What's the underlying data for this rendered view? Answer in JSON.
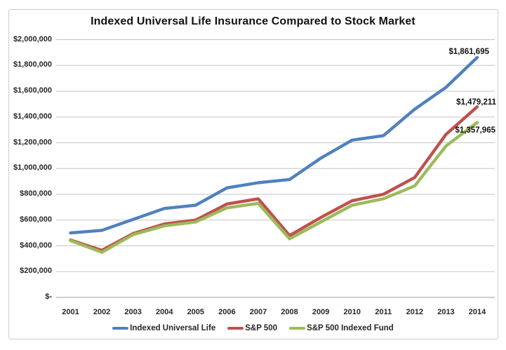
{
  "chart_data": {
    "type": "line",
    "title": "Indexed Universal Life Insurance Compared to Stock Market",
    "categories": [
      "2001",
      "2002",
      "2003",
      "2004",
      "2005",
      "2006",
      "2007",
      "2008",
      "2009",
      "2010",
      "2011",
      "2012",
      "2013",
      "2014"
    ],
    "series": [
      {
        "name": "Indexed Universal Life",
        "color": "#4F81BD",
        "values": [
          500000,
          520000,
          605000,
          690000,
          715000,
          850000,
          890000,
          915000,
          1080000,
          1220000,
          1255000,
          1460000,
          1630000,
          1861695
        ],
        "end_label": "$1,861,695"
      },
      {
        "name": "S&P 500",
        "color": "#C0504D",
        "values": [
          445000,
          365000,
          495000,
          570000,
          600000,
          725000,
          765000,
          480000,
          620000,
          750000,
          800000,
          930000,
          1265000,
          1479211
        ],
        "end_label": "$1,479,211"
      },
      {
        "name": "S&P 500 Indexed Fund",
        "color": "#9BBB59",
        "values": [
          440000,
          350000,
          487000,
          555000,
          585000,
          695000,
          730000,
          455000,
          585000,
          715000,
          765000,
          865000,
          1175000,
          1357965
        ],
        "end_label": "$1,357,965"
      }
    ],
    "y_axis": {
      "ticks": [
        {
          "label": "$2,000,000",
          "value": 2000000
        },
        {
          "label": "$1,800,000",
          "value": 1800000
        },
        {
          "label": "$1,600,000",
          "value": 1600000
        },
        {
          "label": "$1,400,000",
          "value": 1400000
        },
        {
          "label": "$1,200,000",
          "value": 1200000
        },
        {
          "label": "$1,000,000",
          "value": 1000000
        },
        {
          "label": "$800,000",
          "value": 800000
        },
        {
          "label": "$600,000",
          "value": 600000
        },
        {
          "label": "$400,000",
          "value": 400000
        },
        {
          "label": "$200,000",
          "value": 200000
        },
        {
          "label": "$-",
          "value": 0
        }
      ]
    },
    "ylim": [
      0,
      2000000
    ],
    "grid": true,
    "legend_position": "bottom",
    "colors": {
      "gridline": "#c5c5c5",
      "axis_line": "#9b9b9b",
      "text": "#262626"
    }
  }
}
